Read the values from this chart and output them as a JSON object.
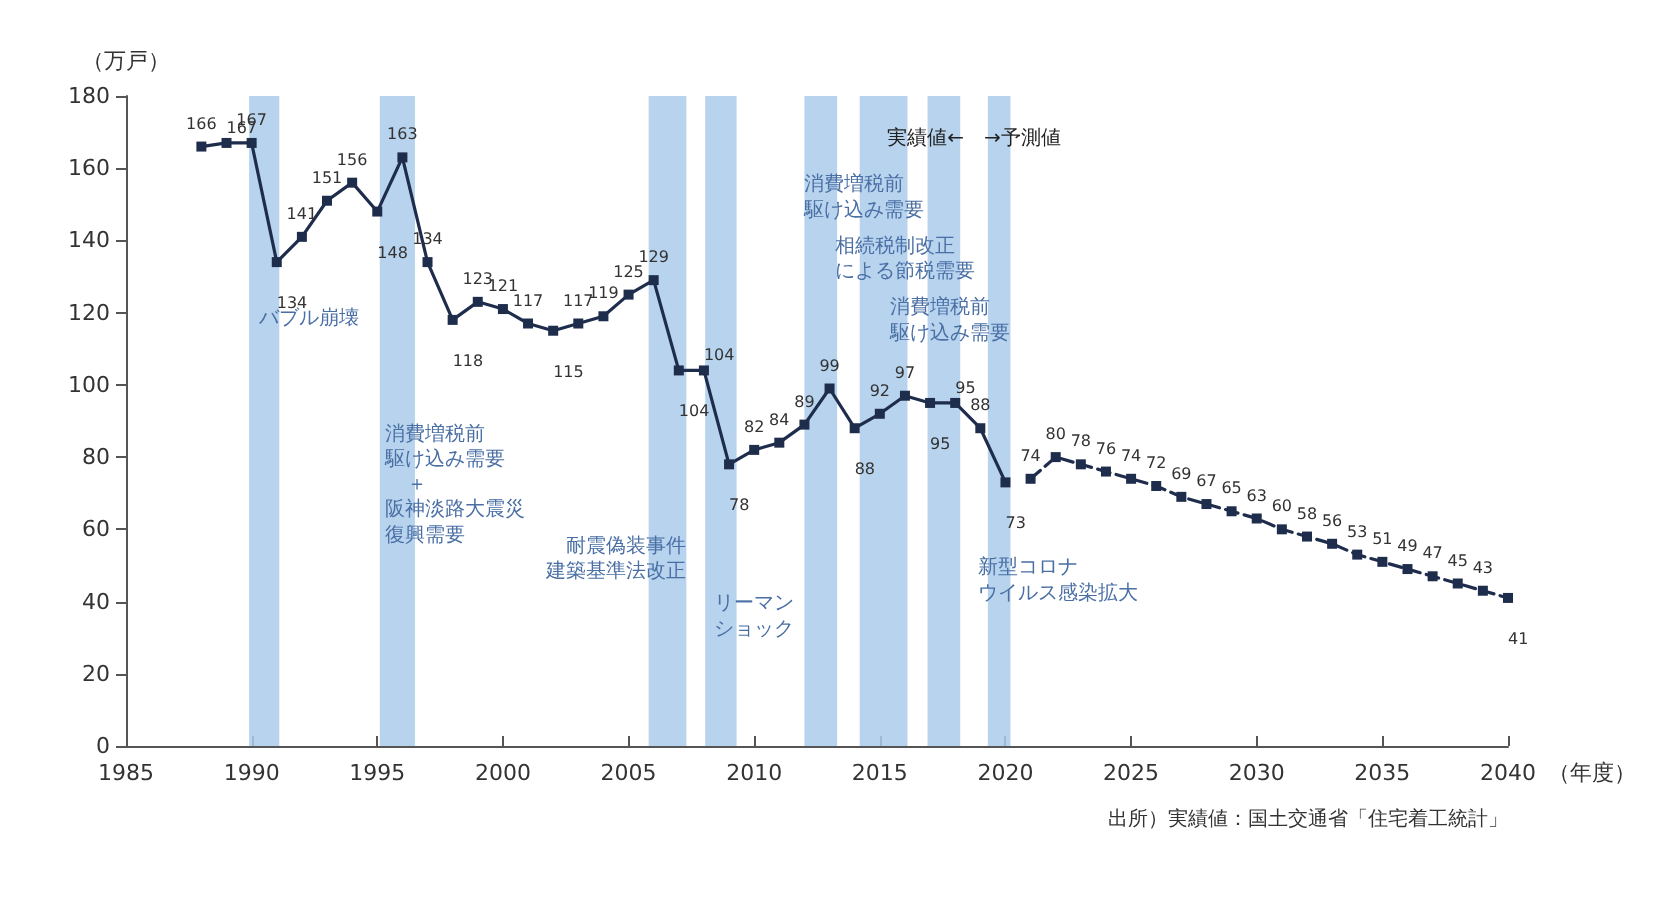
{
  "chart_data": {
    "type": "line",
    "ylabel": "（万戸）",
    "xlabel": "（年度）",
    "xlim": [
      1985,
      2040
    ],
    "xticks": [
      1985,
      1990,
      1995,
      2000,
      2005,
      2010,
      2015,
      2020,
      2025,
      2030,
      2035,
      2040
    ],
    "ylim": [
      0,
      180
    ],
    "yticks": [
      0,
      20,
      40,
      60,
      80,
      100,
      120,
      140,
      160,
      180
    ],
    "grid": false,
    "marker": "square",
    "data_labels": true,
    "series": [
      {
        "color": "#1f2d4d",
        "line_style": "solid",
        "x": [
          1988,
          1989,
          1990,
          1991,
          1992,
          1993,
          1994,
          1995,
          1996,
          1997,
          1998,
          1999,
          2000,
          2001,
          2002,
          2003,
          2004,
          2005,
          2006,
          2007,
          2008,
          2009,
          2010,
          2011,
          2012,
          2013,
          2014,
          2015,
          2016,
          2017,
          2018,
          2019,
          2020
        ],
        "values": [
          166,
          167,
          167,
          134,
          141,
          151,
          156,
          148,
          163,
          134,
          118,
          123,
          121,
          117,
          115,
          117,
          119,
          125,
          129,
          104,
          104,
          78,
          82,
          84,
          89,
          99,
          88,
          92,
          97,
          95,
          95,
          88,
          73
        ]
      },
      {
        "color": "#1f2d4d",
        "line_style": "dashed",
        "x": [
          2021,
          2022,
          2023,
          2024,
          2025,
          2026,
          2027,
          2028,
          2029,
          2030,
          2031,
          2032,
          2033,
          2034,
          2035,
          2036,
          2037,
          2038,
          2039,
          2040
        ],
        "values": [
          74,
          80,
          78,
          76,
          74,
          72,
          69,
          67,
          65,
          63,
          60,
          58,
          56,
          53,
          51,
          49,
          47,
          45,
          43,
          41
        ]
      }
    ],
    "bands": [
      {
        "axis": "x",
        "from": 1989.9,
        "to": 1991.1,
        "color": "#aacbea"
      },
      {
        "axis": "x",
        "from": 1995.1,
        "to": 1996.5,
        "color": "#aacbea"
      },
      {
        "axis": "x",
        "from": 2005.8,
        "to": 2007.3,
        "color": "#aacbea"
      },
      {
        "axis": "x",
        "from": 2008.05,
        "to": 2009.3,
        "color": "#aacbea"
      },
      {
        "axis": "x",
        "from": 2012.0,
        "to": 2013.3,
        "color": "#aacbea"
      },
      {
        "axis": "x",
        "from": 2014.2,
        "to": 2016.1,
        "color": "#aacbea"
      },
      {
        "axis": "x",
        "from": 2016.9,
        "to": 2018.2,
        "color": "#aacbea"
      },
      {
        "axis": "x",
        "from": 2019.3,
        "to": 2020.2,
        "color": "#aacbea"
      }
    ],
    "annotations": [
      "バブル崩壊",
      "消費増税前",
      "駆け込み需要",
      "＋",
      "阪神淡路大震災",
      "復興需要",
      "耐震偽装事件",
      "建築基準法改正",
      "リーマン",
      "ショック",
      "消費増税前",
      "駆け込み需要",
      "相続税制改正",
      "による節税需要",
      "消費増税前",
      "駆け込み需要",
      "新型コロナ",
      "ウイルス感染拡大",
      "実績値←　→予測値",
      "出所）実績値：国土交通省「住宅着工統計」"
    ]
  }
}
